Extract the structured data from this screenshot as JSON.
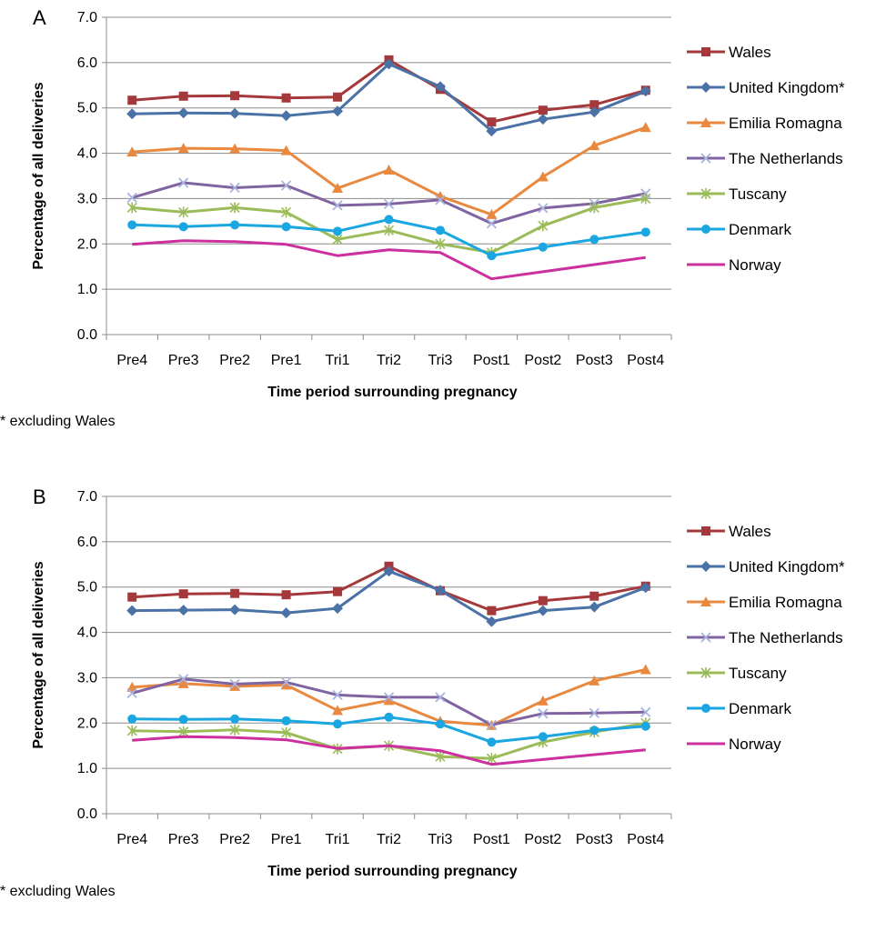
{
  "chart_data": [
    {
      "type": "line",
      "panel_label": "A",
      "xlabel": "Time period surrounding pregnancy",
      "ylabel": "Percentage of all deliveries",
      "ylim": [
        0,
        7
      ],
      "yticks": [
        "0.0",
        "1.0",
        "2.0",
        "3.0",
        "4.0",
        "5.0",
        "6.0",
        "7.0"
      ],
      "grid": true,
      "legend_position": "right",
      "footnote": "* excluding Wales",
      "categories": [
        "Pre4",
        "Pre3",
        "Pre2",
        "Pre1",
        "Tri1",
        "Tri2",
        "Tri3",
        "Post1",
        "Post2",
        "Post3",
        "Post4"
      ],
      "series": [
        {
          "name": "Wales",
          "color": "#a5383a",
          "marker": "square",
          "values": [
            5.17,
            5.26,
            5.27,
            5.22,
            5.24,
            6.06,
            5.41,
            4.69,
            4.95,
            5.07,
            5.39
          ]
        },
        {
          "name": "United Kingdom*",
          "color": "#4b72a6",
          "marker": "diamond",
          "values": [
            4.87,
            4.89,
            4.88,
            4.83,
            4.93,
            5.97,
            5.47,
            4.49,
            4.75,
            4.91,
            5.37
          ]
        },
        {
          "name": "Emilia Romagna",
          "color": "#e9883f",
          "marker": "triangle",
          "values": [
            4.03,
            4.11,
            4.1,
            4.06,
            3.23,
            3.63,
            3.05,
            2.65,
            3.48,
            4.17,
            4.57
          ]
        },
        {
          "name": "The Netherlands",
          "color": "#8064a2",
          "marker": "x",
          "values": [
            3.02,
            3.35,
            3.24,
            3.29,
            2.85,
            2.88,
            2.97,
            2.45,
            2.79,
            2.89,
            3.11
          ]
        },
        {
          "name": "Tuscany",
          "color": "#9bbb59",
          "marker": "star",
          "values": [
            2.8,
            2.7,
            2.8,
            2.7,
            2.1,
            2.3,
            2.0,
            1.81,
            2.4,
            2.8,
            3.0
          ]
        },
        {
          "name": "Denmark",
          "color": "#1aa6e0",
          "marker": "circle",
          "values": [
            2.42,
            2.38,
            2.42,
            2.38,
            2.28,
            2.54,
            2.3,
            1.74,
            1.93,
            2.1,
            2.26
          ]
        },
        {
          "name": "Norway",
          "color": "#cc2f9e",
          "marker": "none",
          "values": [
            1.99,
            2.07,
            2.05,
            1.99,
            1.74,
            1.87,
            1.81,
            1.23,
            null,
            null,
            1.7
          ]
        }
      ]
    },
    {
      "type": "line",
      "panel_label": "B",
      "xlabel": "Time period surrounding pregnancy",
      "ylabel": "Percentage of all deliveries",
      "ylim": [
        0,
        7
      ],
      "yticks": [
        "0.0",
        "1.0",
        "2.0",
        "3.0",
        "4.0",
        "5.0",
        "6.0",
        "7.0"
      ],
      "grid": true,
      "legend_position": "right",
      "footnote": "* excluding Wales",
      "categories": [
        "Pre4",
        "Pre3",
        "Pre2",
        "Pre1",
        "Tri1",
        "Tri2",
        "Tri3",
        "Post1",
        "Post2",
        "Post3",
        "Post4"
      ],
      "series": [
        {
          "name": "Wales",
          "color": "#a5383a",
          "marker": "square",
          "values": [
            4.78,
            4.85,
            4.86,
            4.83,
            4.9,
            5.46,
            4.92,
            4.48,
            4.7,
            4.8,
            5.02
          ]
        },
        {
          "name": "United Kingdom*",
          "color": "#4b72a6",
          "marker": "diamond",
          "values": [
            4.48,
            4.49,
            4.5,
            4.43,
            4.53,
            5.35,
            4.93,
            4.24,
            4.48,
            4.56,
            4.99
          ]
        },
        {
          "name": "Emilia Romagna",
          "color": "#e9883f",
          "marker": "triangle",
          "values": [
            2.79,
            2.87,
            2.81,
            2.84,
            2.28,
            2.5,
            2.04,
            1.95,
            2.49,
            2.93,
            3.18
          ]
        },
        {
          "name": "The Netherlands",
          "color": "#8064a2",
          "marker": "x",
          "values": [
            2.66,
            2.97,
            2.86,
            2.9,
            2.62,
            2.57,
            2.57,
            1.96,
            2.21,
            2.22,
            2.24
          ]
        },
        {
          "name": "Tuscany",
          "color": "#9bbb59",
          "marker": "star",
          "values": [
            1.83,
            1.81,
            1.85,
            1.79,
            1.43,
            1.5,
            1.26,
            1.22,
            1.58,
            1.8,
            2.0
          ]
        },
        {
          "name": "Denmark",
          "color": "#1aa6e0",
          "marker": "circle",
          "values": [
            2.09,
            2.08,
            2.09,
            2.05,
            1.98,
            2.13,
            1.98,
            1.58,
            1.7,
            1.84,
            1.93
          ]
        },
        {
          "name": "Norway",
          "color": "#cc2f9e",
          "marker": "none",
          "values": [
            1.62,
            1.7,
            1.68,
            1.63,
            1.44,
            1.5,
            1.39,
            1.09,
            null,
            null,
            1.41
          ]
        }
      ]
    }
  ]
}
